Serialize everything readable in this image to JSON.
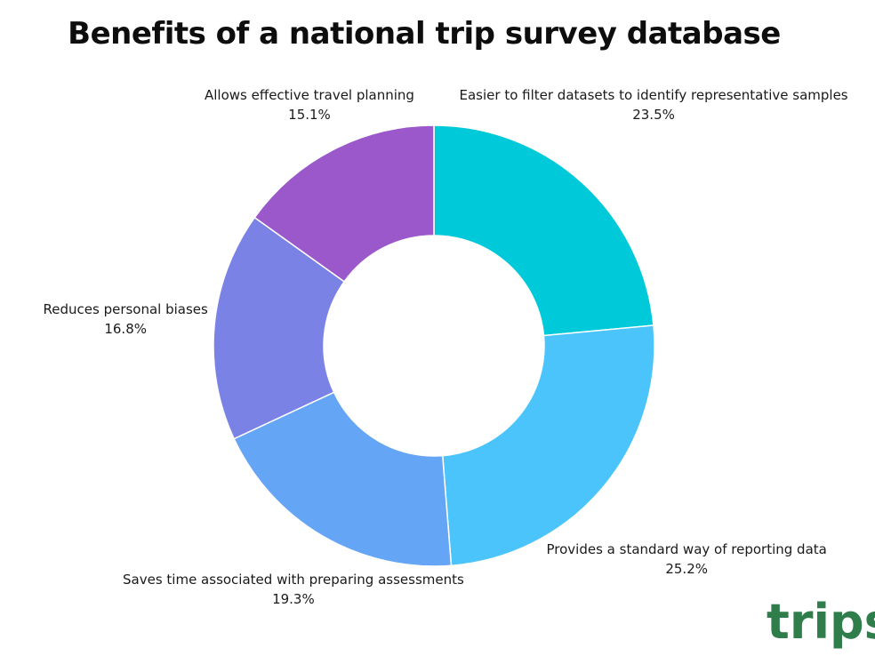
{
  "title": "Benefits of a national trip survey database",
  "logo": {
    "text": "trips",
    "color": "#2f7d4a"
  },
  "chart_data": {
    "type": "pie",
    "donut": true,
    "title": "Benefits of a national trip survey database",
    "slices": [
      {
        "label": "Easier to filter datasets to identify representative samples",
        "value": 23.5,
        "pct_label": "23.5%",
        "color": "#00c9da"
      },
      {
        "label": "Provides a standard way of reporting data",
        "value": 25.2,
        "pct_label": "25.2%",
        "color": "#4ac4fb"
      },
      {
        "label": "Saves time associated with preparing assessments",
        "value": 19.3,
        "pct_label": "19.3%",
        "color": "#65a5f6"
      },
      {
        "label": "Reduces personal biases",
        "value": 16.8,
        "pct_label": "16.8%",
        "color": "#7a82e6"
      },
      {
        "label": "Allows effective travel planning",
        "value": 15.1,
        "pct_label": "15.1%",
        "color": "#9a58cb"
      }
    ]
  }
}
